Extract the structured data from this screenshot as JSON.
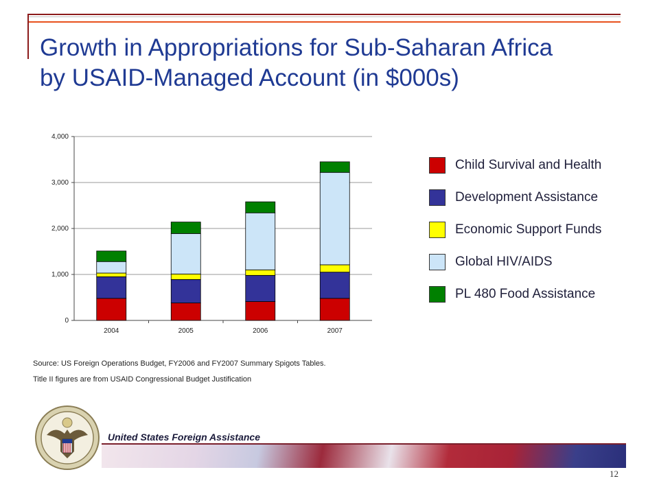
{
  "slide": {
    "title_line1": "Growth in Appropriations for Sub-Saharan Africa",
    "title_line2": "by USAID-Managed Account (in $000s)",
    "source_line1": "Source:  US Foreign Operations Budget, FY2006 and FY2007 Summary Spigots Tables.",
    "source_line2": "Title II figures are from USAID Congressional Budget Justification",
    "org_name": "United States Foreign Assistance",
    "page_number": "12"
  },
  "chart_data": {
    "type": "bar",
    "stacked": true,
    "categories": [
      "2004",
      "2005",
      "2006",
      "2007"
    ],
    "series": [
      {
        "name": "Child Survival and Health",
        "color": "#cc0000",
        "values": [
          480,
          380,
          410,
          480
        ]
      },
      {
        "name": "Development Assistance",
        "color": "#333399",
        "values": [
          470,
          510,
          570,
          570
        ]
      },
      {
        "name": "Economic Support Funds",
        "color": "#ffff00",
        "values": [
          80,
          120,
          120,
          160
        ]
      },
      {
        "name": "Global HIV/AIDS",
        "color": "#cce5f8",
        "values": [
          250,
          880,
          1240,
          2010
        ]
      },
      {
        "name": "PL 480 Food Assistance",
        "color": "#008000",
        "values": [
          230,
          250,
          240,
          230
        ]
      }
    ],
    "yticks": [
      "0",
      "1,000",
      "2,000",
      "3,000",
      "4,000"
    ],
    "ylim": [
      0,
      4000
    ],
    "grid": true,
    "legend_position": "right"
  }
}
